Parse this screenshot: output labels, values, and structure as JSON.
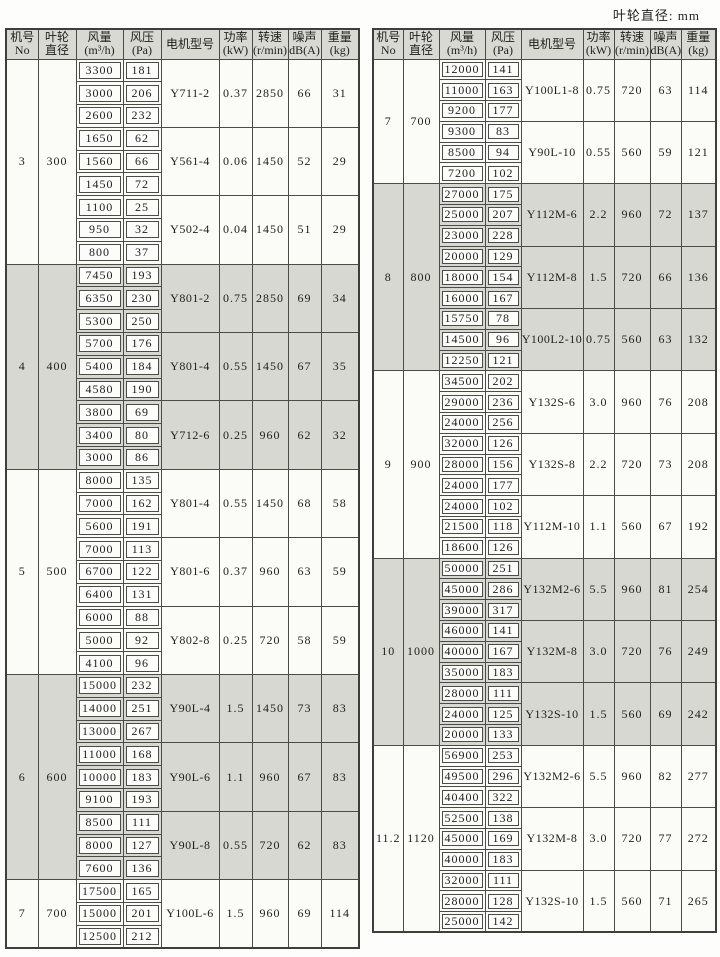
{
  "page": {
    "unit_note": "叶轮直径: mm"
  },
  "columns": [
    {
      "id": "no",
      "label": "机号",
      "sub": "No"
    },
    {
      "id": "diameter",
      "label": "叶轮",
      "sub": "直径"
    },
    {
      "id": "flow",
      "label": "风量",
      "sub": "(m³/h)"
    },
    {
      "id": "pressure",
      "label": "风压",
      "sub": "(Pa)"
    },
    {
      "id": "motor",
      "label": "电机型号",
      "sub": ""
    },
    {
      "id": "power",
      "label": "功率",
      "sub": "(kW)"
    },
    {
      "id": "speed",
      "label": "转速",
      "sub": "(r/min)"
    },
    {
      "id": "noise",
      "label": "噪声",
      "sub": "dB(A)"
    },
    {
      "id": "weight",
      "label": "重量",
      "sub": "(kg)"
    }
  ],
  "tables": [
    {
      "id": "left",
      "sections": [
        {
          "no": "3",
          "diameter": "300",
          "shaded": false,
          "groups": [
            {
              "rows": [
                [
                  "3300",
                  "181"
                ],
                [
                  "3000",
                  "206"
                ],
                [
                  "2600",
                  "232"
                ]
              ],
              "motor": "Y711-2",
              "power": "0.37",
              "speed": "2850",
              "noise": "66",
              "weight": "31"
            },
            {
              "rows": [
                [
                  "1650",
                  "62"
                ],
                [
                  "1560",
                  "66"
                ],
                [
                  "1450",
                  "72"
                ]
              ],
              "motor": "Y561-4",
              "power": "0.06",
              "speed": "1450",
              "noise": "52",
              "weight": "29"
            },
            {
              "rows": [
                [
                  "1100",
                  "25"
                ],
                [
                  "950",
                  "32"
                ],
                [
                  "800",
                  "37"
                ]
              ],
              "motor": "Y502-4",
              "power": "0.04",
              "speed": "1450",
              "noise": "51",
              "weight": "29"
            }
          ]
        },
        {
          "no": "4",
          "diameter": "400",
          "shaded": true,
          "groups": [
            {
              "rows": [
                [
                  "7450",
                  "193"
                ],
                [
                  "6350",
                  "230"
                ],
                [
                  "5300",
                  "250"
                ]
              ],
              "motor": "Y801-2",
              "power": "0.75",
              "speed": "2850",
              "noise": "69",
              "weight": "34"
            },
            {
              "rows": [
                [
                  "5700",
                  "176"
                ],
                [
                  "5400",
                  "184"
                ],
                [
                  "4580",
                  "190"
                ]
              ],
              "motor": "Y801-4",
              "power": "0.55",
              "speed": "1450",
              "noise": "67",
              "weight": "35"
            },
            {
              "rows": [
                [
                  "3800",
                  "69"
                ],
                [
                  "3400",
                  "80"
                ],
                [
                  "3000",
                  "86"
                ]
              ],
              "motor": "Y712-6",
              "power": "0.25",
              "speed": "960",
              "noise": "62",
              "weight": "32"
            }
          ]
        },
        {
          "no": "5",
          "diameter": "500",
          "shaded": false,
          "groups": [
            {
              "rows": [
                [
                  "8000",
                  "135"
                ],
                [
                  "7000",
                  "162"
                ],
                [
                  "5600",
                  "191"
                ]
              ],
              "motor": "Y801-4",
              "power": "0.55",
              "speed": "1450",
              "noise": "68",
              "weight": "58"
            },
            {
              "rows": [
                [
                  "7000",
                  "113"
                ],
                [
                  "6700",
                  "122"
                ],
                [
                  "6400",
                  "131"
                ]
              ],
              "motor": "Y801-6",
              "power": "0.37",
              "speed": "960",
              "noise": "63",
              "weight": "59"
            },
            {
              "rows": [
                [
                  "6000",
                  "88"
                ],
                [
                  "5000",
                  "92"
                ],
                [
                  "4100",
                  "96"
                ]
              ],
              "motor": "Y802-8",
              "power": "0.25",
              "speed": "720",
              "noise": "58",
              "weight": "59"
            }
          ]
        },
        {
          "no": "6",
          "diameter": "600",
          "shaded": true,
          "groups": [
            {
              "rows": [
                [
                  "15000",
                  "232"
                ],
                [
                  "14000",
                  "251"
                ],
                [
                  "13000",
                  "267"
                ]
              ],
              "motor": "Y90L-4",
              "power": "1.5",
              "speed": "1450",
              "noise": "73",
              "weight": "83"
            },
            {
              "rows": [
                [
                  "11000",
                  "168"
                ],
                [
                  "10000",
                  "183"
                ],
                [
                  "9100",
                  "193"
                ]
              ],
              "motor": "Y90L-6",
              "power": "1.1",
              "speed": "960",
              "noise": "67",
              "weight": "83"
            },
            {
              "rows": [
                [
                  "8500",
                  "111"
                ],
                [
                  "8000",
                  "127"
                ],
                [
                  "7600",
                  "136"
                ]
              ],
              "motor": "Y90L-8",
              "power": "0.55",
              "speed": "720",
              "noise": "62",
              "weight": "83"
            }
          ]
        },
        {
          "no": "7",
          "diameter": "700",
          "shaded": false,
          "groups": [
            {
              "rows": [
                [
                  "17500",
                  "165"
                ],
                [
                  "15000",
                  "201"
                ],
                [
                  "12500",
                  "212"
                ]
              ],
              "motor": "Y100L-6",
              "power": "1.5",
              "speed": "960",
              "noise": "69",
              "weight": "114"
            }
          ]
        }
      ]
    },
    {
      "id": "right",
      "sections": [
        {
          "no": "7",
          "diameter": "700",
          "shaded": false,
          "groups": [
            {
              "rows": [
                [
                  "12000",
                  "141"
                ],
                [
                  "11000",
                  "163"
                ],
                [
                  "9200",
                  "177"
                ]
              ],
              "motor": "Y100L1-8",
              "power": "0.75",
              "speed": "720",
              "noise": "63",
              "weight": "114"
            },
            {
              "rows": [
                [
                  "9300",
                  "83"
                ],
                [
                  "8500",
                  "94"
                ],
                [
                  "7200",
                  "102"
                ]
              ],
              "motor": "Y90L-10",
              "power": "0.55",
              "speed": "560",
              "noise": "59",
              "weight": "121"
            }
          ]
        },
        {
          "no": "8",
          "diameter": "800",
          "shaded": true,
          "groups": [
            {
              "rows": [
                [
                  "27000",
                  "175"
                ],
                [
                  "25000",
                  "207"
                ],
                [
                  "23000",
                  "228"
                ]
              ],
              "motor": "Y112M-6",
              "power": "2.2",
              "speed": "960",
              "noise": "72",
              "weight": "137"
            },
            {
              "rows": [
                [
                  "20000",
                  "129"
                ],
                [
                  "18000",
                  "154"
                ],
                [
                  "16000",
                  "167"
                ]
              ],
              "motor": "Y112M-8",
              "power": "1.5",
              "speed": "720",
              "noise": "66",
              "weight": "136"
            },
            {
              "rows": [
                [
                  "15750",
                  "78"
                ],
                [
                  "14500",
                  "96"
                ],
                [
                  "12250",
                  "121"
                ]
              ],
              "motor": "Y100L2-10",
              "power": "0.75",
              "speed": "560",
              "noise": "63",
              "weight": "132"
            }
          ]
        },
        {
          "no": "9",
          "diameter": "900",
          "shaded": false,
          "groups": [
            {
              "rows": [
                [
                  "34500",
                  "202"
                ],
                [
                  "29000",
                  "236"
                ],
                [
                  "24000",
                  "256"
                ]
              ],
              "motor": "Y132S-6",
              "power": "3.0",
              "speed": "960",
              "noise": "76",
              "weight": "208"
            },
            {
              "rows": [
                [
                  "32000",
                  "126"
                ],
                [
                  "28000",
                  "156"
                ],
                [
                  "24000",
                  "177"
                ]
              ],
              "motor": "Y132S-8",
              "power": "2.2",
              "speed": "720",
              "noise": "73",
              "weight": "208"
            },
            {
              "rows": [
                [
                  "24000",
                  "102"
                ],
                [
                  "21500",
                  "118"
                ],
                [
                  "18600",
                  "126"
                ]
              ],
              "motor": "Y112M-10",
              "power": "1.1",
              "speed": "560",
              "noise": "67",
              "weight": "192"
            }
          ]
        },
        {
          "no": "10",
          "diameter": "1000",
          "shaded": true,
          "groups": [
            {
              "rows": [
                [
                  "50000",
                  "251"
                ],
                [
                  "45000",
                  "286"
                ],
                [
                  "39000",
                  "317"
                ]
              ],
              "motor": "Y132M2-6",
              "power": "5.5",
              "speed": "960",
              "noise": "81",
              "weight": "254"
            },
            {
              "rows": [
                [
                  "46000",
                  "141"
                ],
                [
                  "40000",
                  "167"
                ],
                [
                  "35000",
                  "183"
                ]
              ],
              "motor": "Y132M-8",
              "power": "3.0",
              "speed": "720",
              "noise": "76",
              "weight": "249"
            },
            {
              "rows": [
                [
                  "28000",
                  "111"
                ],
                [
                  "24000",
                  "125"
                ],
                [
                  "20000",
                  "133"
                ]
              ],
              "motor": "Y132S-10",
              "power": "1.5",
              "speed": "560",
              "noise": "69",
              "weight": "242"
            }
          ]
        },
        {
          "no": "11.2",
          "diameter": "1120",
          "shaded": false,
          "groups": [
            {
              "rows": [
                [
                  "56900",
                  "253"
                ],
                [
                  "49500",
                  "296"
                ],
                [
                  "40400",
                  "322"
                ]
              ],
              "motor": "Y132M2-6",
              "power": "5.5",
              "speed": "960",
              "noise": "82",
              "weight": "277"
            },
            {
              "rows": [
                [
                  "52500",
                  "138"
                ],
                [
                  "45000",
                  "169"
                ],
                [
                  "40000",
                  "183"
                ]
              ],
              "motor": "Y132M-8",
              "power": "3.0",
              "speed": "720",
              "noise": "77",
              "weight": "272"
            },
            {
              "rows": [
                [
                  "32000",
                  "111"
                ],
                [
                  "28000",
                  "128"
                ],
                [
                  "25000",
                  "142"
                ]
              ],
              "motor": "Y132S-10",
              "power": "1.5",
              "speed": "560",
              "noise": "71",
              "weight": "265"
            }
          ]
        }
      ]
    }
  ]
}
